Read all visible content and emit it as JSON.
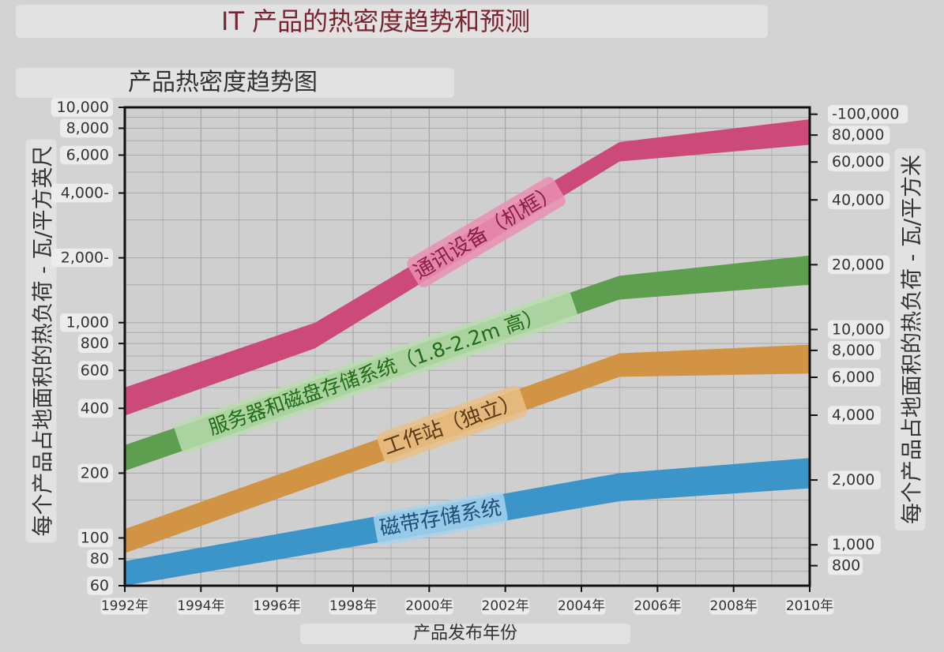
{
  "chart_data": {
    "type": "area",
    "title": "IT 产品的热密度趋势和预测",
    "subtitle": "产品热密度趋势图",
    "xlabel": "产品发布年份",
    "ylabel": "每个产品占地面积的热负荷 - 瓦/平方英尺",
    "ylabel_right": "每个产品占地面积的热负荷 - 瓦/平方米",
    "x_range": [
      1992,
      2010
    ],
    "y_range": [
      60,
      10000
    ],
    "y_scale": "log",
    "grid": true,
    "x_ticks": [
      {
        "value": 1992,
        "label": "1992年"
      },
      {
        "value": 1994,
        "label": "1994年"
      },
      {
        "value": 1996,
        "label": "1996年"
      },
      {
        "value": 1998,
        "label": "1998年"
      },
      {
        "value": 2000,
        "label": "2000年"
      },
      {
        "value": 2002,
        "label": "2002年"
      },
      {
        "value": 2004,
        "label": "2004年"
      },
      {
        "value": 2006,
        "label": "2006年"
      },
      {
        "value": 2008,
        "label": "2008年"
      },
      {
        "value": 2010,
        "label": "2010年"
      }
    ],
    "y_ticks_left": [
      {
        "value": 10000,
        "label": "10,000"
      },
      {
        "value": 8000,
        "label": "8,000"
      },
      {
        "value": 6000,
        "label": "6,000"
      },
      {
        "value": 4000,
        "label": "4,000-"
      },
      {
        "value": 2000,
        "label": "2,000-"
      },
      {
        "value": 1000,
        "label": "1,000"
      },
      {
        "value": 800,
        "label": "800"
      },
      {
        "value": 600,
        "label": "600"
      },
      {
        "value": 400,
        "label": "400"
      },
      {
        "value": 200,
        "label": "200"
      },
      {
        "value": 100,
        "label": "100"
      },
      {
        "value": 80,
        "label": "80"
      },
      {
        "value": 60,
        "label": "60"
      }
    ],
    "y_ticks_right": [
      {
        "value": 100000,
        "label": "-100,000"
      },
      {
        "value": 80000,
        "label": "80,000"
      },
      {
        "value": 60000,
        "label": "60,000"
      },
      {
        "value": 40000,
        "label": "40,000"
      },
      {
        "value": 20000,
        "label": "20,000"
      },
      {
        "value": 10000,
        "label": "10,000"
      },
      {
        "value": 8000,
        "label": "8,000"
      },
      {
        "value": 6000,
        "label": "6,000"
      },
      {
        "value": 4000,
        "label": "4,000"
      },
      {
        "value": 2000,
        "label": "2,000"
      },
      {
        "value": 1000,
        "label": "1,000"
      },
      {
        "value": 800,
        "label": "800"
      }
    ],
    "series": [
      {
        "name": "通讯设备（机框）",
        "color": "#cc4a7a",
        "label_color": "#8a1f45",
        "label_bg": "#e98fb2",
        "x": [
          1992,
          1997,
          2005,
          2010
        ],
        "upper": [
          500,
          1000,
          6900,
          8800
        ],
        "lower": [
          370,
          760,
          5600,
          6700
        ]
      },
      {
        "name": "服务器和磁盘存储系统（1.8-2.2m 高）",
        "color": "#5e9e4f",
        "label_color": "#1f6b18",
        "label_bg": "#b9dcae",
        "x": [
          1992,
          2005,
          2010
        ],
        "upper": [
          270,
          1650,
          2050
        ],
        "lower": [
          205,
          1280,
          1500
        ]
      },
      {
        "name": "工作站（独立）",
        "color": "#d19445",
        "label_color": "#5a3a16",
        "label_bg": "#e9bf86",
        "x": [
          1992,
          2005,
          2010
        ],
        "upper": [
          110,
          720,
          790
        ],
        "lower": [
          85,
          560,
          580
        ]
      },
      {
        "name": "磁带存储系统",
        "color": "#3b95c9",
        "label_color": "#1d4e7a",
        "label_bg": "#a8d4ec",
        "x": [
          1992,
          2005,
          2010
        ],
        "upper": [
          78,
          200,
          235
        ],
        "lower": [
          60,
          148,
          170
        ]
      }
    ]
  }
}
